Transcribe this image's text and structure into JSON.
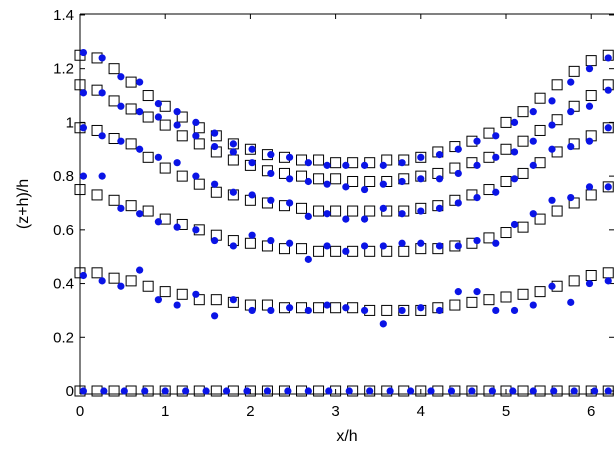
{
  "chart_data": {
    "type": "scatter",
    "xlabel": "x/h",
    "ylabel": "(z+h)/h",
    "xlim": [
      0,
      6.2
    ],
    "ylim": [
      0,
      1.4
    ],
    "xticks": [
      "0",
      "1",
      "2",
      "3",
      "4",
      "5",
      "6"
    ],
    "yticks": [
      "0",
      "0.2",
      "0.4",
      "0.6",
      "0.8",
      "1",
      "1.2",
      "1.4"
    ],
    "grid": false,
    "colors": {
      "open": "#000000",
      "filled": "#0a14e6"
    },
    "series": [
      {
        "marker": "open-square",
        "profiles": [
          {
            "x": [
              0,
              0.2,
              0.4,
              0.6,
              0.8,
              1.0,
              1.2,
              1.4,
              1.6,
              1.8,
              2.0,
              2.2,
              2.4,
              2.6,
              2.8,
              3.0,
              3.2,
              3.4,
              3.6,
              3.8,
              4.0,
              4.2,
              4.4,
              4.6,
              4.8,
              5.0,
              5.2,
              5.4,
              5.6,
              5.8,
              6.0,
              6.2
            ],
            "y": [
              0,
              0,
              0,
              0,
              0,
              0,
              0,
              0,
              0,
              0,
              0,
              0,
              0,
              0,
              0,
              0,
              0,
              0,
              0,
              0,
              0,
              0,
              0,
              0,
              0,
              0,
              0,
              0,
              0,
              0,
              0,
              0
            ]
          },
          {
            "x": [
              0,
              0.2,
              0.4,
              0.6,
              0.8,
              1.0,
              1.2,
              1.4,
              1.6,
              1.8,
              2.0,
              2.2,
              2.4,
              2.6,
              2.8,
              3.0,
              3.2,
              3.4,
              3.6,
              3.8,
              4.0,
              4.2,
              4.4,
              4.6,
              4.8,
              5.0,
              5.2,
              5.4,
              5.6,
              5.8,
              6.0,
              6.2
            ],
            "y": [
              0.44,
              0.44,
              0.42,
              0.41,
              0.39,
              0.37,
              0.36,
              0.34,
              0.34,
              0.33,
              0.32,
              0.32,
              0.31,
              0.31,
              0.31,
              0.31,
              0.31,
              0.3,
              0.3,
              0.3,
              0.3,
              0.31,
              0.32,
              0.33,
              0.34,
              0.35,
              0.36,
              0.37,
              0.39,
              0.41,
              0.43,
              0.44
            ]
          },
          {
            "x": [
              0,
              0.2,
              0.4,
              0.6,
              0.8,
              1.0,
              1.2,
              1.4,
              1.6,
              1.8,
              2.0,
              2.2,
              2.4,
              2.6,
              2.8,
              3.0,
              3.2,
              3.4,
              3.6,
              3.8,
              4.0,
              4.2,
              4.4,
              4.6,
              4.8,
              5.0,
              5.2,
              5.4,
              5.6,
              5.8,
              6.0,
              6.2
            ],
            "y": [
              0.75,
              0.73,
              0.71,
              0.69,
              0.67,
              0.64,
              0.62,
              0.6,
              0.58,
              0.56,
              0.55,
              0.54,
              0.53,
              0.53,
              0.52,
              0.52,
              0.52,
              0.52,
              0.52,
              0.52,
              0.53,
              0.53,
              0.54,
              0.55,
              0.57,
              0.59,
              0.61,
              0.64,
              0.67,
              0.7,
              0.73,
              0.76
            ]
          },
          {
            "x": [
              0,
              0.2,
              0.4,
              0.6,
              0.8,
              1.0,
              1.2,
              1.4,
              1.6,
              1.8,
              2.0,
              2.2,
              2.4,
              2.6,
              2.8,
              3.0,
              3.2,
              3.4,
              3.6,
              3.8,
              4.0,
              4.2,
              4.4,
              4.6,
              4.8,
              5.0,
              5.2,
              5.4,
              5.6,
              5.8,
              6.0,
              6.2
            ],
            "y": [
              0.98,
              0.97,
              0.94,
              0.92,
              0.87,
              0.83,
              0.8,
              0.77,
              0.74,
              0.73,
              0.71,
              0.7,
              0.69,
              0.68,
              0.67,
              0.67,
              0.67,
              0.67,
              0.67,
              0.67,
              0.68,
              0.69,
              0.71,
              0.73,
              0.75,
              0.78,
              0.81,
              0.85,
              0.89,
              0.92,
              0.95,
              0.98
            ]
          },
          {
            "x": [
              0,
              0.2,
              0.4,
              0.6,
              0.8,
              1.0,
              1.2,
              1.4,
              1.6,
              1.8,
              2.0,
              2.2,
              2.4,
              2.6,
              2.8,
              3.0,
              3.2,
              3.4,
              3.6,
              3.8,
              4.0,
              4.2,
              4.4,
              4.6,
              4.8,
              5.0,
              5.2,
              5.4,
              5.6,
              5.8,
              6.0,
              6.2
            ],
            "y": [
              1.14,
              1.12,
              1.08,
              1.05,
              1.02,
              0.99,
              0.95,
              0.92,
              0.89,
              0.86,
              0.84,
              0.82,
              0.81,
              0.8,
              0.79,
              0.79,
              0.78,
              0.78,
              0.78,
              0.79,
              0.8,
              0.81,
              0.83,
              0.85,
              0.87,
              0.9,
              0.93,
              0.97,
              1.01,
              1.06,
              1.1,
              1.14
            ]
          },
          {
            "x": [
              0,
              0.2,
              0.4,
              0.6,
              0.8,
              1.0,
              1.2,
              1.4,
              1.6,
              1.8,
              2.0,
              2.2,
              2.4,
              2.6,
              2.8,
              3.0,
              3.2,
              3.4,
              3.6,
              3.8,
              4.0,
              4.2,
              4.4,
              4.6,
              4.8,
              5.0,
              5.2,
              5.4,
              5.6,
              5.8,
              6.0,
              6.2
            ],
            "y": [
              1.25,
              1.24,
              1.2,
              1.15,
              1.1,
              1.06,
              1.02,
              0.98,
              0.95,
              0.92,
              0.9,
              0.88,
              0.87,
              0.86,
              0.86,
              0.85,
              0.85,
              0.85,
              0.86,
              0.86,
              0.87,
              0.89,
              0.91,
              0.93,
              0.96,
              1.0,
              1.04,
              1.09,
              1.14,
              1.19,
              1.23,
              1.25
            ]
          }
        ]
      },
      {
        "marker": "filled-circle",
        "profiles": [
          {
            "x": [
              0.04,
              0.28,
              0.52,
              0.76,
              1.0,
              1.24,
              1.48,
              1.72,
              1.96,
              2.2,
              2.44,
              2.68,
              2.92,
              3.16,
              3.4,
              3.64,
              3.88,
              4.12,
              4.36,
              4.6,
              4.84,
              5.08,
              5.32,
              5.56,
              5.8,
              6.04,
              6.2
            ],
            "y": [
              0,
              0,
              0,
              0,
              0,
              0,
              0,
              0,
              0,
              0,
              0,
              0,
              0,
              0,
              0,
              0,
              0,
              0,
              0,
              0,
              0,
              0,
              0,
              0,
              0,
              0,
              0
            ]
          },
          {
            "x": [
              0.04,
              0.26,
              0.48,
              0.7,
              0.92,
              1.14,
              1.36,
              1.58,
              1.8,
              2.02,
              2.24,
              2.46,
              2.68,
              2.9,
              3.12,
              3.34,
              3.56,
              3.78,
              4.0,
              4.22,
              4.44,
              4.66,
              4.88,
              5.1,
              5.32,
              5.54,
              5.76,
              5.98,
              6.2
            ],
            "y": [
              0.43,
              0.41,
              0.39,
              0.45,
              0.34,
              0.32,
              0.36,
              0.28,
              0.34,
              0.3,
              0.3,
              0.31,
              0.3,
              0.32,
              0.31,
              0.3,
              0.25,
              0.3,
              0.31,
              0.3,
              0.37,
              0.37,
              0.3,
              0.3,
              0.32,
              0.39,
              0.33,
              0.4,
              0.41
            ]
          },
          {
            "x": [
              0.04,
              0.26,
              0.48,
              0.7,
              0.92,
              1.14,
              1.36,
              1.58,
              1.8,
              2.02,
              2.24,
              2.46,
              2.68,
              2.9,
              3.12,
              3.34,
              3.56,
              3.78,
              4.0,
              4.22,
              4.44,
              4.66,
              4.88,
              5.1,
              5.32,
              5.54,
              5.76,
              5.98,
              6.2
            ],
            "y": [
              0.8,
              0.8,
              0.68,
              0.66,
              0.63,
              0.61,
              0.6,
              0.56,
              0.54,
              0.58,
              0.56,
              0.55,
              0.49,
              0.54,
              0.52,
              0.54,
              0.54,
              0.55,
              0.55,
              0.54,
              0.54,
              0.56,
              0.55,
              0.62,
              0.66,
              0.71,
              0.72,
              0.76,
              0.76
            ]
          },
          {
            "x": [
              0.04,
              0.26,
              0.48,
              0.7,
              0.92,
              1.14,
              1.36,
              1.58,
              1.8,
              2.02,
              2.24,
              2.46,
              2.68,
              2.9,
              3.12,
              3.34,
              3.56,
              3.78,
              4.0,
              4.22,
              4.44,
              4.66,
              4.88,
              5.1,
              5.32,
              5.54,
              5.76,
              5.98,
              6.2
            ],
            "y": [
              0.98,
              0.95,
              0.93,
              0.9,
              0.87,
              0.85,
              0.8,
              0.77,
              0.74,
              0.73,
              0.71,
              0.7,
              0.65,
              0.66,
              0.64,
              0.64,
              0.68,
              0.66,
              0.67,
              0.68,
              0.7,
              0.72,
              0.74,
              0.79,
              0.84,
              0.9,
              0.91,
              0.93,
              0.98
            ]
          },
          {
            "x": [
              0.04,
              0.26,
              0.48,
              0.7,
              0.92,
              1.14,
              1.36,
              1.58,
              1.8,
              2.02,
              2.24,
              2.46,
              2.68,
              2.9,
              3.12,
              3.34,
              3.56,
              3.78,
              4.0,
              4.22,
              4.44,
              4.66,
              4.88,
              5.1,
              5.32,
              5.54,
              5.76,
              5.98,
              6.2
            ],
            "y": [
              1.11,
              1.11,
              1.06,
              1.04,
              1.02,
              0.99,
              0.95,
              0.91,
              0.89,
              0.85,
              0.81,
              0.79,
              0.78,
              0.77,
              0.76,
              0.75,
              0.77,
              0.78,
              0.79,
              0.79,
              0.81,
              0.84,
              0.87,
              0.89,
              0.93,
              0.99,
              1.04,
              1.06,
              1.12
            ]
          },
          {
            "x": [
              0.04,
              0.26,
              0.48,
              0.7,
              0.92,
              1.14,
              1.36,
              1.58,
              1.8,
              2.02,
              2.24,
              2.46,
              2.68,
              2.9,
              3.12,
              3.34,
              3.56,
              3.78,
              4.0,
              4.22,
              4.44,
              4.66,
              4.88,
              5.1,
              5.32,
              5.54,
              5.76,
              5.98,
              6.2
            ],
            "y": [
              1.26,
              1.24,
              1.17,
              1.15,
              1.07,
              1.04,
              1.0,
              0.96,
              0.92,
              0.9,
              0.88,
              0.87,
              0.85,
              0.84,
              0.84,
              0.84,
              0.84,
              0.85,
              0.87,
              0.88,
              0.9,
              0.93,
              0.95,
              1.0,
              1.04,
              1.08,
              1.15,
              1.2,
              1.24
            ]
          }
        ]
      }
    ]
  }
}
